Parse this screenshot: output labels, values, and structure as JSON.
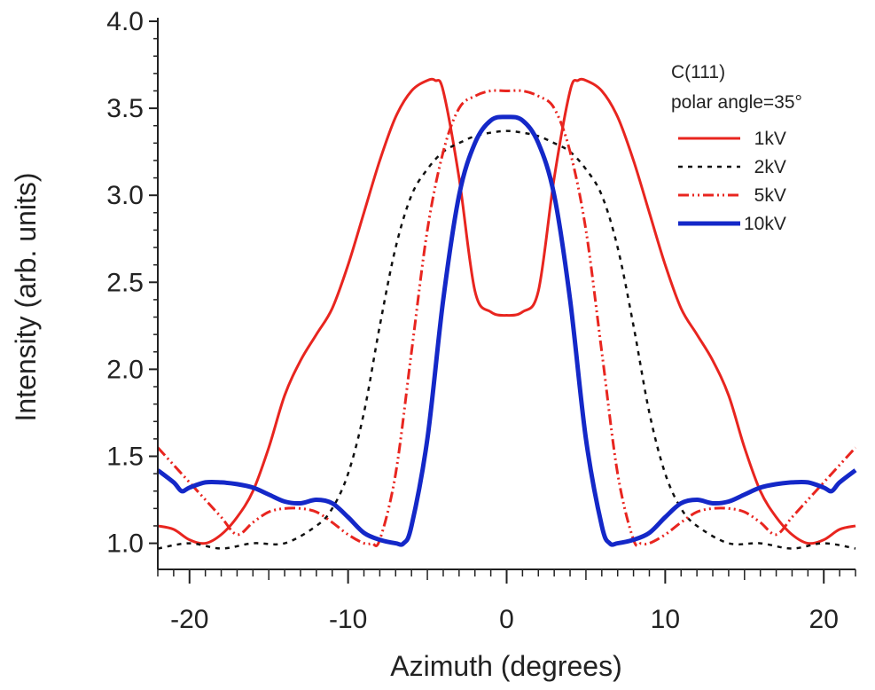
{
  "chart_data": {
    "type": "line",
    "title": "",
    "xlabel": "Azimuth (degrees)",
    "ylabel": "Intensity (arb. units)",
    "xlim": [
      -22,
      22
    ],
    "ylim": [
      0.85,
      4.0
    ],
    "xticks": [
      -20,
      -10,
      0,
      10,
      20
    ],
    "xtick_labels": [
      "-20",
      "-10",
      "0",
      "10",
      "20"
    ],
    "yticks": [
      1.0,
      1.5,
      2.0,
      2.5,
      3.0,
      3.5,
      4.0
    ],
    "ytick_labels": [
      "1.0",
      "1.5",
      "2.0",
      "2.5",
      "3.0",
      "3.5",
      "4.0"
    ],
    "legend_title_lines": [
      "C(111)",
      "polar angle=35°"
    ],
    "legend_position": "top-right",
    "grid": false,
    "series": [
      {
        "name": "1kV",
        "color": "#e8251f",
        "dash": "solid",
        "x": [
          -22,
          -21,
          -20,
          -19,
          -18,
          -17,
          -16,
          -15,
          -14,
          -13,
          -12,
          -11,
          -10,
          -9,
          -8,
          -7,
          -6,
          -5,
          -4.5,
          -4,
          -3,
          -2,
          -1,
          0,
          1,
          2,
          3,
          4,
          4.5,
          5,
          6,
          7,
          8,
          9,
          10,
          11,
          12,
          13,
          14,
          15,
          16,
          17,
          18,
          19,
          20,
          21,
          22
        ],
        "y": [
          1.1,
          1.08,
          1.02,
          1.0,
          1.05,
          1.15,
          1.3,
          1.55,
          1.85,
          2.05,
          2.2,
          2.35,
          2.6,
          2.9,
          3.2,
          3.45,
          3.6,
          3.66,
          3.66,
          3.6,
          3.1,
          2.45,
          2.33,
          2.31,
          2.33,
          2.45,
          3.1,
          3.6,
          3.66,
          3.66,
          3.6,
          3.45,
          3.2,
          2.9,
          2.6,
          2.35,
          2.2,
          2.05,
          1.85,
          1.55,
          1.3,
          1.15,
          1.05,
          1.0,
          1.02,
          1.08,
          1.1
        ]
      },
      {
        "name": "2kV",
        "color": "#111111",
        "dash": "dashed",
        "x": [
          -22,
          -20,
          -18,
          -16,
          -14,
          -12,
          -11,
          -10,
          -9,
          -8,
          -7,
          -6,
          -5,
          -4,
          -3,
          -2,
          -1,
          0,
          1,
          2,
          3,
          4,
          5,
          6,
          7,
          8,
          9,
          10,
          11,
          12,
          14,
          16,
          18,
          20,
          22
        ],
        "y": [
          0.97,
          1.0,
          0.97,
          1.0,
          1.0,
          1.1,
          1.2,
          1.4,
          1.75,
          2.25,
          2.7,
          3.0,
          3.15,
          3.25,
          3.3,
          3.34,
          3.36,
          3.37,
          3.36,
          3.34,
          3.3,
          3.25,
          3.15,
          3.0,
          2.7,
          2.25,
          1.75,
          1.4,
          1.2,
          1.1,
          1.0,
          1.0,
          0.97,
          1.0,
          0.97
        ]
      },
      {
        "name": "5kV",
        "color": "#e8251f",
        "dash": "dash-dot-dot",
        "x": [
          -22,
          -21,
          -20,
          -19,
          -18,
          -17,
          -16,
          -15,
          -14,
          -13,
          -12,
          -11,
          -10,
          -9,
          -8.5,
          -8,
          -7,
          -6,
          -5,
          -4,
          -3,
          -2,
          -1,
          0,
          1,
          2,
          3,
          4,
          5,
          6,
          7,
          8,
          8.5,
          9,
          10,
          11,
          12,
          13,
          14,
          15,
          16,
          17,
          18,
          19,
          20,
          21,
          22
        ],
        "y": [
          1.55,
          1.45,
          1.35,
          1.25,
          1.15,
          1.05,
          1.12,
          1.18,
          1.2,
          1.2,
          1.18,
          1.12,
          1.05,
          1.0,
          1.0,
          1.02,
          1.4,
          2.1,
          2.8,
          3.25,
          3.5,
          3.57,
          3.6,
          3.6,
          3.6,
          3.57,
          3.5,
          3.25,
          2.8,
          2.1,
          1.4,
          1.02,
          1.0,
          1.0,
          1.05,
          1.12,
          1.18,
          1.2,
          1.2,
          1.18,
          1.12,
          1.05,
          1.15,
          1.25,
          1.35,
          1.45,
          1.55
        ]
      },
      {
        "name": "10kV",
        "color": "#1428c8",
        "dash": "solid",
        "x": [
          -22,
          -21,
          -20.5,
          -20,
          -19,
          -18,
          -17,
          -16,
          -15,
          -14,
          -13,
          -12,
          -11,
          -10,
          -9,
          -8,
          -7,
          -6.5,
          -6,
          -5,
          -4,
          -3,
          -2,
          -1,
          0,
          1,
          2,
          3,
          4,
          5,
          6,
          6.5,
          7,
          8,
          9,
          10,
          11,
          12,
          13,
          14,
          15,
          16,
          17,
          18,
          19,
          20,
          20.5,
          21,
          22
        ],
        "y": [
          1.42,
          1.35,
          1.3,
          1.32,
          1.35,
          1.35,
          1.34,
          1.32,
          1.28,
          1.24,
          1.23,
          1.25,
          1.23,
          1.15,
          1.06,
          1.02,
          1.0,
          1.0,
          1.1,
          1.6,
          2.4,
          3.0,
          3.3,
          3.43,
          3.45,
          3.43,
          3.3,
          3.0,
          2.4,
          1.6,
          1.1,
          1.0,
          1.0,
          1.02,
          1.06,
          1.15,
          1.23,
          1.25,
          1.23,
          1.24,
          1.28,
          1.32,
          1.34,
          1.35,
          1.35,
          1.32,
          1.3,
          1.35,
          1.42
        ]
      }
    ]
  }
}
